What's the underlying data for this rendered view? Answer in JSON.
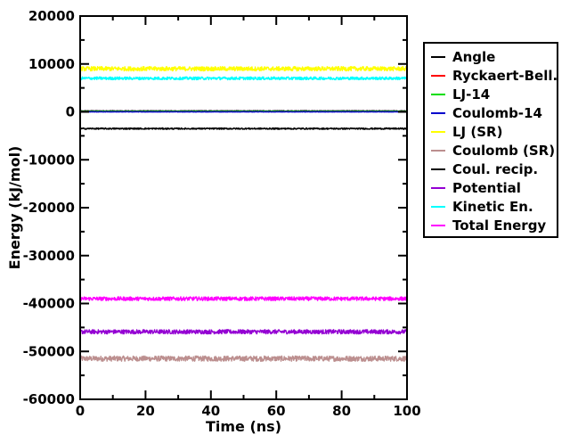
{
  "chart_data": {
    "type": "line",
    "xlabel": "Time (ns)",
    "ylabel": "Energy (kJ/mol)",
    "xlim": [
      0,
      100
    ],
    "ylim": [
      -60000,
      20000
    ],
    "x_ticks": [
      0,
      20,
      40,
      60,
      80,
      100
    ],
    "x_tick_labels": [
      "0",
      "20",
      "40",
      "60",
      "80",
      "100"
    ],
    "y_ticks": [
      -60000,
      -50000,
      -40000,
      -30000,
      -20000,
      -10000,
      0,
      10000,
      20000
    ],
    "y_tick_labels": [
      "-60000",
      "-50000",
      "-40000",
      "-30000",
      "-20000",
      "-10000",
      "0",
      "10000",
      "20000"
    ],
    "grid": false,
    "legend_position": "right",
    "series": [
      {
        "name": "Angle",
        "color": "#000000",
        "mean": 200,
        "noise": 60
      },
      {
        "name": "Ryckaert-Bell.",
        "color": "#ff0000",
        "mean": 50,
        "noise": 30
      },
      {
        "name": "LJ-14",
        "color": "#00dd00",
        "mean": 100,
        "noise": 30
      },
      {
        "name": "Coulomb-14",
        "color": "#0000cc",
        "mean": 0,
        "noise": 40
      },
      {
        "name": "LJ (SR)",
        "color": "#ffff00",
        "mean": 9000,
        "noise": 450
      },
      {
        "name": "Coulomb (SR)",
        "color": "#bc8f8f",
        "mean": -51500,
        "noise": 550
      },
      {
        "name": "Coul. recip.",
        "color": "#000000",
        "mean": -3500,
        "noise": 150
      },
      {
        "name": "Potential",
        "color": "#9400d3",
        "mean": -45900,
        "noise": 450
      },
      {
        "name": "Kinetic En.",
        "color": "#00ffff",
        "mean": 7000,
        "noise": 300
      },
      {
        "name": "Total Energy",
        "color": "#ff00ff",
        "mean": -39000,
        "noise": 400
      }
    ],
    "draw_order": [
      5,
      7,
      9,
      4,
      8,
      6,
      0,
      1,
      2,
      3
    ]
  }
}
